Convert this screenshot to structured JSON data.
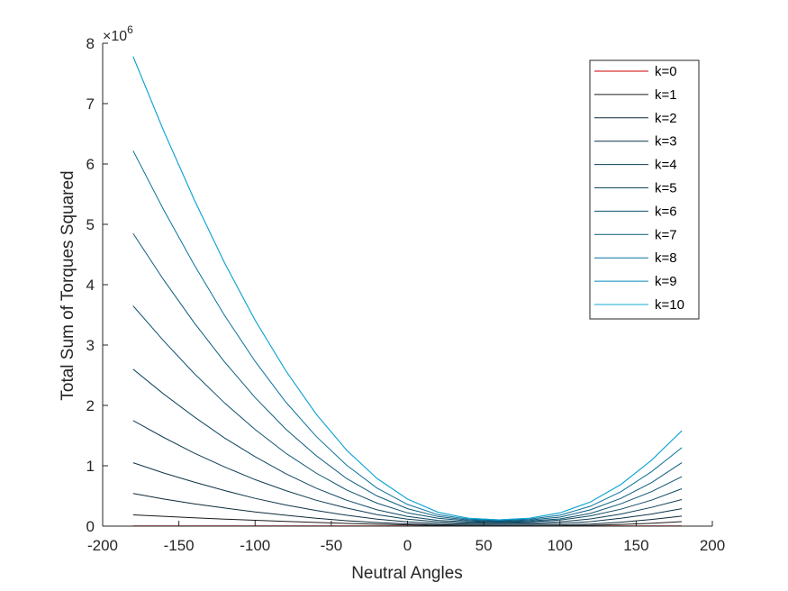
{
  "chart_data": {
    "type": "line",
    "title": "",
    "xlabel": "Neutral Angles",
    "ylabel": "Total Sum of Torques Squared",
    "xlim": [
      -200,
      200
    ],
    "ylim": [
      0,
      8
    ],
    "y_exponent_label": "×10",
    "y_exponent": "6",
    "x_ticks": [
      -200,
      -150,
      -100,
      -50,
      0,
      50,
      100,
      150,
      200
    ],
    "x_tick_labels": [
      "-200",
      "-150",
      "-100",
      "-50",
      "0",
      "50",
      "100",
      "150",
      "200"
    ],
    "y_ticks": [
      0,
      1,
      2,
      3,
      4,
      5,
      6,
      7,
      8
    ],
    "y_tick_labels": [
      "0",
      "1",
      "2",
      "3",
      "4",
      "5",
      "6",
      "7",
      "8"
    ],
    "x": [
      -180,
      -160,
      -140,
      -120,
      -100,
      -80,
      -60,
      -40,
      -20,
      0,
      20,
      40,
      60,
      80,
      100,
      120,
      140,
      160,
      180
    ],
    "grid": false,
    "legend_position": "top-right",
    "series": [
      {
        "name": "k=0",
        "color": "#cc0000",
        "values": [
          0.003,
          0.003,
          0.003,
          0.003,
          0.003,
          0.003,
          0.003,
          0.003,
          0.003,
          0.003,
          0.003,
          0.003,
          0.003,
          0.003,
          0.003,
          0.003,
          0.003,
          0.003,
          0.003
        ]
      },
      {
        "name": "k=1",
        "color": "#1a1a1a",
        "values": [
          0.186,
          0.162,
          0.139,
          0.117,
          0.097,
          0.079,
          0.061,
          0.045,
          0.032,
          0.021,
          0.012,
          0.007,
          0.003,
          0.003,
          0.006,
          0.014,
          0.028,
          0.047,
          0.074
        ]
      },
      {
        "name": "k=2",
        "color": "#0f2a3a",
        "values": [
          0.54,
          0.45,
          0.37,
          0.3,
          0.235,
          0.18,
          0.13,
          0.09,
          0.06,
          0.038,
          0.024,
          0.017,
          0.014,
          0.015,
          0.02,
          0.035,
          0.065,
          0.11,
          0.165
        ]
      },
      {
        "name": "k=3",
        "color": "#0f3448",
        "values": [
          1.05,
          0.88,
          0.73,
          0.59,
          0.46,
          0.35,
          0.26,
          0.18,
          0.115,
          0.07,
          0.045,
          0.035,
          0.031,
          0.034,
          0.045,
          0.075,
          0.13,
          0.2,
          0.29
        ]
      },
      {
        "name": "k=4",
        "color": "#0e3e55",
        "values": [
          1.75,
          1.47,
          1.21,
          0.98,
          0.77,
          0.59,
          0.43,
          0.3,
          0.19,
          0.115,
          0.07,
          0.052,
          0.048,
          0.053,
          0.07,
          0.12,
          0.2,
          0.31,
          0.44
        ]
      },
      {
        "name": "k=5",
        "color": "#0e4862",
        "values": [
          2.6,
          2.19,
          1.81,
          1.46,
          1.15,
          0.87,
          0.63,
          0.43,
          0.27,
          0.16,
          0.095,
          0.068,
          0.062,
          0.07,
          0.1,
          0.17,
          0.28,
          0.43,
          0.62
        ]
      },
      {
        "name": "k=6",
        "color": "#0d5270",
        "values": [
          3.65,
          3.07,
          2.53,
          2.04,
          1.6,
          1.21,
          0.88,
          0.6,
          0.38,
          0.22,
          0.13,
          0.085,
          0.075,
          0.085,
          0.12,
          0.21,
          0.37,
          0.57,
          0.82
        ]
      },
      {
        "name": "k=7",
        "color": "#0c5c7e",
        "values": [
          4.85,
          4.08,
          3.37,
          2.72,
          2.13,
          1.61,
          1.17,
          0.79,
          0.5,
          0.29,
          0.16,
          0.1,
          0.087,
          0.1,
          0.15,
          0.27,
          0.46,
          0.72,
          1.05
        ]
      },
      {
        "name": "k=8",
        "color": "#0a7199",
        "values": [
          6.22,
          5.24,
          4.33,
          3.49,
          2.73,
          2.06,
          1.49,
          1.01,
          0.63,
          0.36,
          0.19,
          0.115,
          0.097,
          0.115,
          0.18,
          0.33,
          0.57,
          0.9,
          1.3
        ]
      },
      {
        "name": "k=9",
        "color": "#0989b7",
        "values": [
          7.78,
          6.55,
          5.41,
          4.36,
          3.41,
          2.58,
          1.86,
          1.26,
          0.79,
          0.45,
          0.23,
          0.13,
          0.105,
          0.13,
          0.22,
          0.4,
          0.69,
          1.09,
          1.58
        ]
      },
      {
        "name": "k=10",
        "color": "#13a8d6",
        "values": [
          7.78,
          6.55,
          5.41,
          4.36,
          3.41,
          2.58,
          1.86,
          1.26,
          0.79,
          0.45,
          0.23,
          0.13,
          0.105,
          0.13,
          0.22,
          0.4,
          0.69,
          1.09,
          1.58
        ]
      }
    ]
  }
}
